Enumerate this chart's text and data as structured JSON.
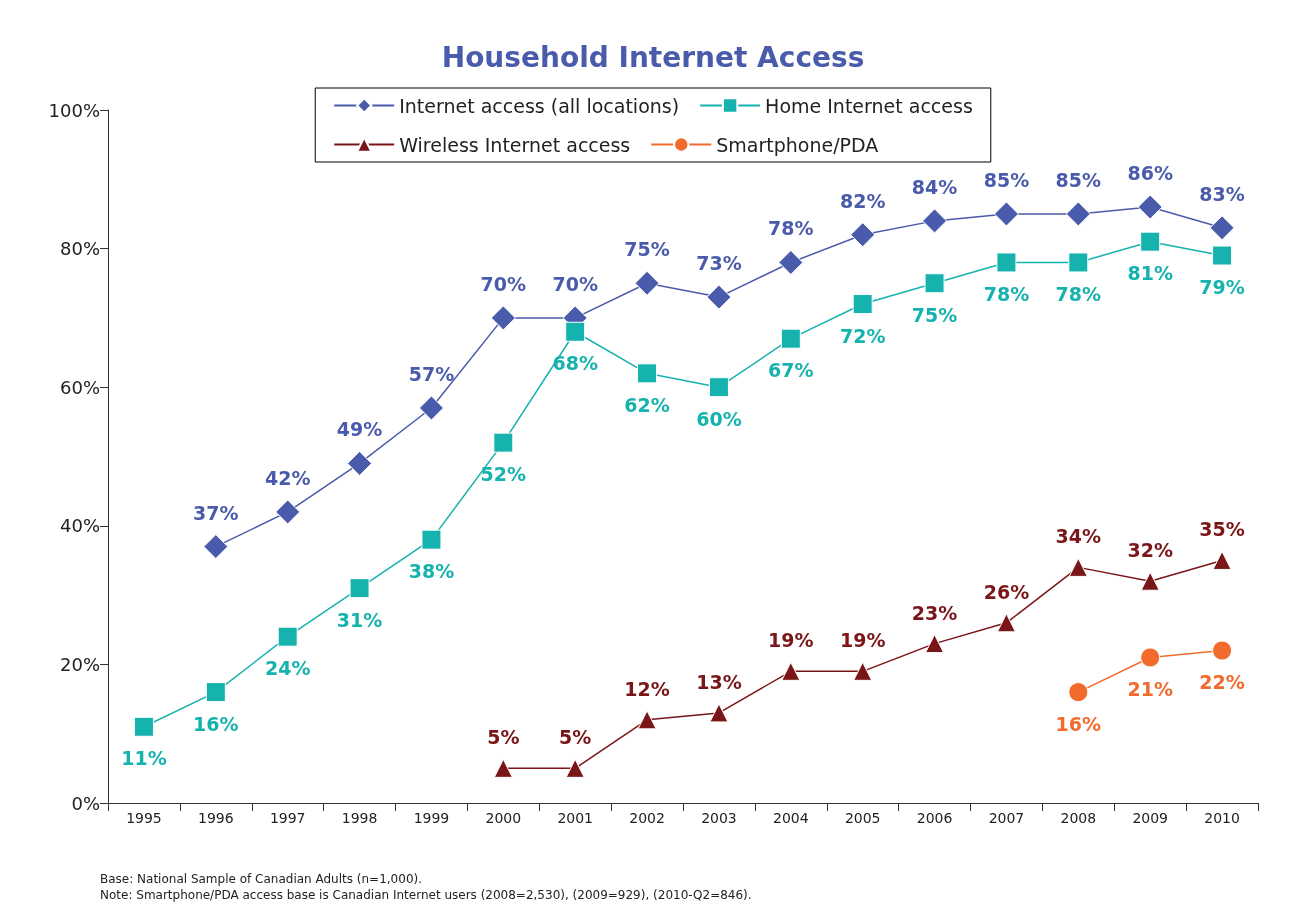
{
  "chart_data": {
    "type": "line",
    "title": "Household Internet Access",
    "categories": [
      "1995",
      "1996",
      "1997",
      "1998",
      "1999",
      "2000",
      "2001",
      "2002",
      "2003",
      "2004",
      "2005",
      "2006",
      "2007",
      "2008",
      "2009",
      "2010"
    ],
    "series": [
      {
        "name": "Internet access (all locations)",
        "color": "#4b5bab",
        "marker": "diamond",
        "values": [
          null,
          37,
          42,
          49,
          57,
          70,
          70,
          75,
          73,
          78,
          82,
          84,
          85,
          85,
          86,
          83
        ],
        "value_labels": [
          null,
          "37%",
          "42%",
          "49%",
          "57%",
          "70%",
          "70%",
          "75%",
          "73%",
          "78%",
          "82%",
          "84%",
          "85%",
          "85%",
          "86%",
          "83%"
        ]
      },
      {
        "name": "Home Internet access",
        "color": "#16b2ae",
        "marker": "square",
        "values": [
          11,
          16,
          24,
          31,
          38,
          52,
          68,
          62,
          60,
          67,
          72,
          75,
          78,
          78,
          81,
          79
        ],
        "value_labels": [
          "11%",
          "16%",
          "24%",
          "31%",
          "38%",
          "52%",
          "68%",
          "62%",
          "60%",
          "67%",
          "72%",
          "75%",
          "78%",
          "78%",
          "81%",
          "79%"
        ]
      },
      {
        "name": "Wireless Internet access",
        "color": "#7a1518",
        "marker": "triangle",
        "values": [
          null,
          null,
          null,
          null,
          null,
          5,
          5,
          12,
          13,
          19,
          19,
          23,
          26,
          34,
          32,
          35
        ],
        "value_labels": [
          null,
          null,
          null,
          null,
          null,
          "5%",
          "5%",
          "12%",
          "13%",
          "19%",
          "19%",
          "23%",
          "26%",
          "34%",
          "32%",
          "35%"
        ]
      },
      {
        "name": "Smartphone/PDA",
        "color": "#f26b2d",
        "marker": "circle",
        "values": [
          null,
          null,
          null,
          null,
          null,
          null,
          null,
          null,
          null,
          null,
          null,
          null,
          null,
          16,
          21,
          22
        ],
        "value_labels": [
          null,
          null,
          null,
          null,
          null,
          null,
          null,
          null,
          null,
          null,
          null,
          null,
          null,
          "16%",
          "21%",
          "22%"
        ]
      }
    ],
    "ylim": [
      0,
      100
    ],
    "yticks": [
      {
        "value": 0,
        "label": "0%"
      },
      {
        "value": 20,
        "label": "20%"
      },
      {
        "value": 40,
        "label": "40%"
      },
      {
        "value": 60,
        "label": "60%"
      },
      {
        "value": 80,
        "label": "80%"
      },
      {
        "value": 100,
        "label": "100%"
      }
    ],
    "grid": false,
    "legend": "top",
    "annotations": [
      "Base: National Sample of Canadian Adults (n=1,000).",
      "Note: Smartphone/PDA access base is Canadian Internet users (2008=2,530), (2009=929), (2010-Q2=846)."
    ]
  }
}
